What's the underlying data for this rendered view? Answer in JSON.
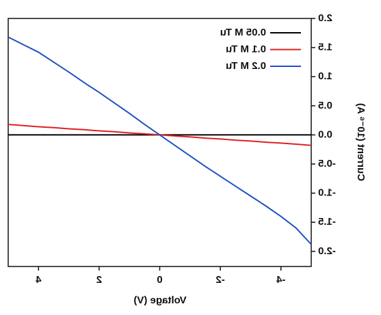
{
  "chart_data": {
    "type": "line",
    "x_label": "Voltage (V)",
    "y_label": "Current (10⁻⁶ A)",
    "x": [
      -5,
      -4.5,
      -4,
      -3.5,
      -3,
      -2.5,
      -2,
      -1.5,
      -1,
      -0.5,
      0,
      0.5,
      1,
      1.5,
      2,
      2.5,
      3,
      3.5,
      4,
      4.5,
      5
    ],
    "series": [
      {
        "name": "0.05 M Tu",
        "color": "#000000",
        "values": [
          0,
          0,
          0,
          0,
          0,
          0,
          0,
          0,
          0,
          0,
          0,
          0,
          0,
          0,
          0,
          0,
          0,
          0,
          0,
          0,
          0
        ]
      },
      {
        "name": "0.1 M Tu",
        "color": "#e02020",
        "values": [
          -0.18,
          -0.16,
          -0.14,
          -0.125,
          -0.105,
          -0.09,
          -0.07,
          -0.055,
          -0.035,
          -0.018,
          0,
          0.018,
          0.035,
          0.055,
          0.07,
          0.09,
          0.105,
          0.125,
          0.14,
          0.16,
          0.18
        ]
      },
      {
        "name": "0.2 M Tu",
        "color": "#2050c0",
        "values": [
          -1.88,
          -1.6,
          -1.4,
          -1.22,
          -1.05,
          -0.88,
          -0.71,
          -0.54,
          -0.36,
          -0.18,
          0,
          0.18,
          0.37,
          0.55,
          0.73,
          0.9,
          1.08,
          1.25,
          1.42,
          1.55,
          1.68
        ]
      }
    ],
    "xlim": [
      -5,
      5
    ],
    "ylim": [
      -2.26,
      2.0
    ],
    "xticks": [
      -4,
      -2,
      0,
      2,
      4
    ],
    "yticks": [
      {
        "value": -2,
        "label": "-2.0"
      },
      -1.5,
      {
        "value": -1,
        "label": "-1.0"
      },
      -0.5,
      {
        "value": 0,
        "label": "0.0"
      },
      0.5,
      {
        "value": 1,
        "label": "1.0"
      },
      1.5,
      {
        "value": 2,
        "label": "2.0"
      }
    ],
    "mirrored": true,
    "legend": "upper-left"
  }
}
